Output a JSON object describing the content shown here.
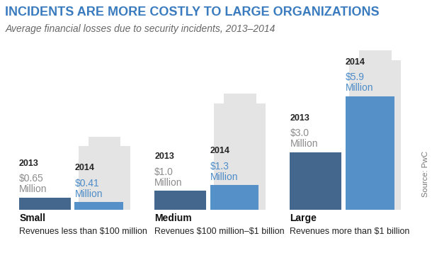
{
  "chart_data": {
    "type": "bar",
    "title": "INCIDENTS ARE MORE COSTLY TO LARGE ORGANIZATIONS",
    "subtitle": "Average financial losses due to security incidents, 2013–2014",
    "source": "Source: PwC",
    "categories": [
      "Small",
      "Medium",
      "Large"
    ],
    "category_subtitles": [
      "Revenues less than $100 million",
      "Revenues $100 million–$1 billion",
      "Revenues more than $1 billion"
    ],
    "series": [
      {
        "name": "2013",
        "color": "#395f87",
        "values": [
          0.65,
          1.0,
          3.0
        ],
        "value_labels": [
          "$0.65\nMillion",
          "$1.0\nMillion",
          "$3.0\nMillion"
        ]
      },
      {
        "name": "2014",
        "color": "#4d8cc8",
        "values": [
          0.41,
          1.3,
          5.9
        ],
        "value_labels": [
          "$0.41\nMillion",
          "$1.3\nMillion",
          "$5.9\nMillion"
        ]
      }
    ],
    "data_labels": true,
    "tick_labels": false,
    "grid": false
  }
}
